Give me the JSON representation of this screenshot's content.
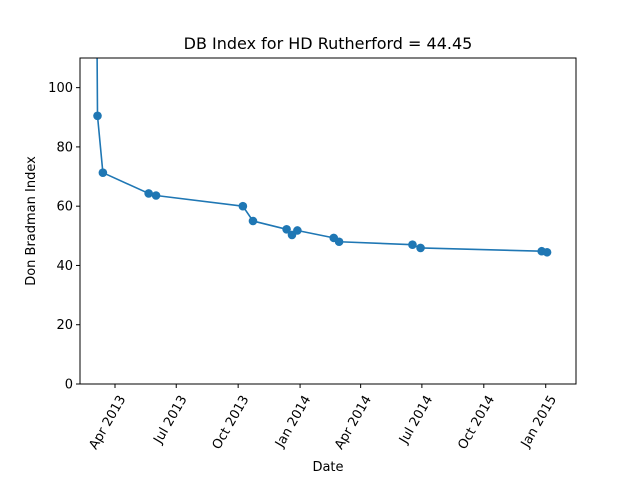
{
  "chart_data": {
    "type": "line",
    "title": "DB Index for HD Rutherford = 44.45",
    "xlabel": "Date",
    "ylabel": "Don Bradman Index",
    "ylim": [
      0,
      110
    ],
    "xlim": [
      "2013-02-08",
      "2015-02-15"
    ],
    "grid": false,
    "color": "#1f77b4",
    "x_ticks": [
      {
        "date": "2013-04-01",
        "label": "Apr 2013"
      },
      {
        "date": "2013-07-01",
        "label": "Jul 2013"
      },
      {
        "date": "2013-10-01",
        "label": "Oct 2013"
      },
      {
        "date": "2014-01-01",
        "label": "Jan 2014"
      },
      {
        "date": "2014-04-01",
        "label": "Apr 2014"
      },
      {
        "date": "2014-07-01",
        "label": "Jul 2014"
      },
      {
        "date": "2014-10-01",
        "label": "Oct 2014"
      },
      {
        "date": "2015-01-01",
        "label": "Jan 2015"
      }
    ],
    "y_ticks": [
      0,
      20,
      40,
      60,
      80,
      100
    ],
    "line_start": {
      "x": "2013-03-05",
      "y": 125
    },
    "series": [
      {
        "x": [
          "2013-03-06",
          "2013-03-14",
          "2013-05-21",
          "2013-06-01",
          "2013-10-08",
          "2013-10-23",
          "2013-12-12",
          "2013-12-20",
          "2013-12-28",
          "2014-02-20",
          "2014-02-28",
          "2014-06-17",
          "2014-06-29",
          "2014-12-26",
          "2015-01-03"
        ],
        "y": [
          90.5,
          71.3,
          64.3,
          63.6,
          60.0,
          55.0,
          52.2,
          50.3,
          51.8,
          49.3,
          48.0,
          47.0,
          45.9,
          44.8,
          44.45
        ]
      }
    ]
  }
}
